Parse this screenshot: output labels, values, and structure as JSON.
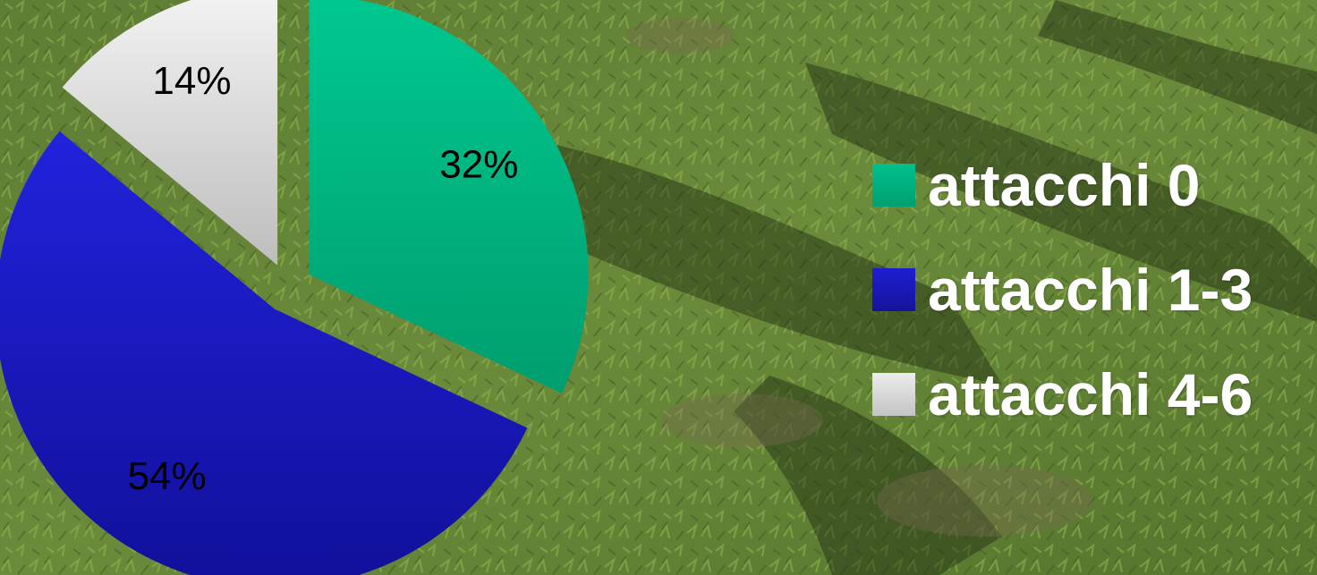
{
  "chart_data": {
    "type": "pie",
    "slices": [
      {
        "label": "attacchi 0",
        "value": 32,
        "display": "32%",
        "color": "#00c08c",
        "color_dark": "#00a070"
      },
      {
        "label": "attacchi 1-3",
        "value": 54,
        "display": "54%",
        "color": "#1e1ed2",
        "color_dark": "#14149a"
      },
      {
        "label": "attacchi 4-6",
        "value": 14,
        "display": "14%",
        "color": "#ececec",
        "color_dark": "#c4c4c4"
      }
    ],
    "legend_position": "right",
    "exploded": true,
    "start_angle": "12 o'clock, clockwise"
  },
  "background": {
    "type": "photo",
    "subject": "grass field with shadows"
  }
}
